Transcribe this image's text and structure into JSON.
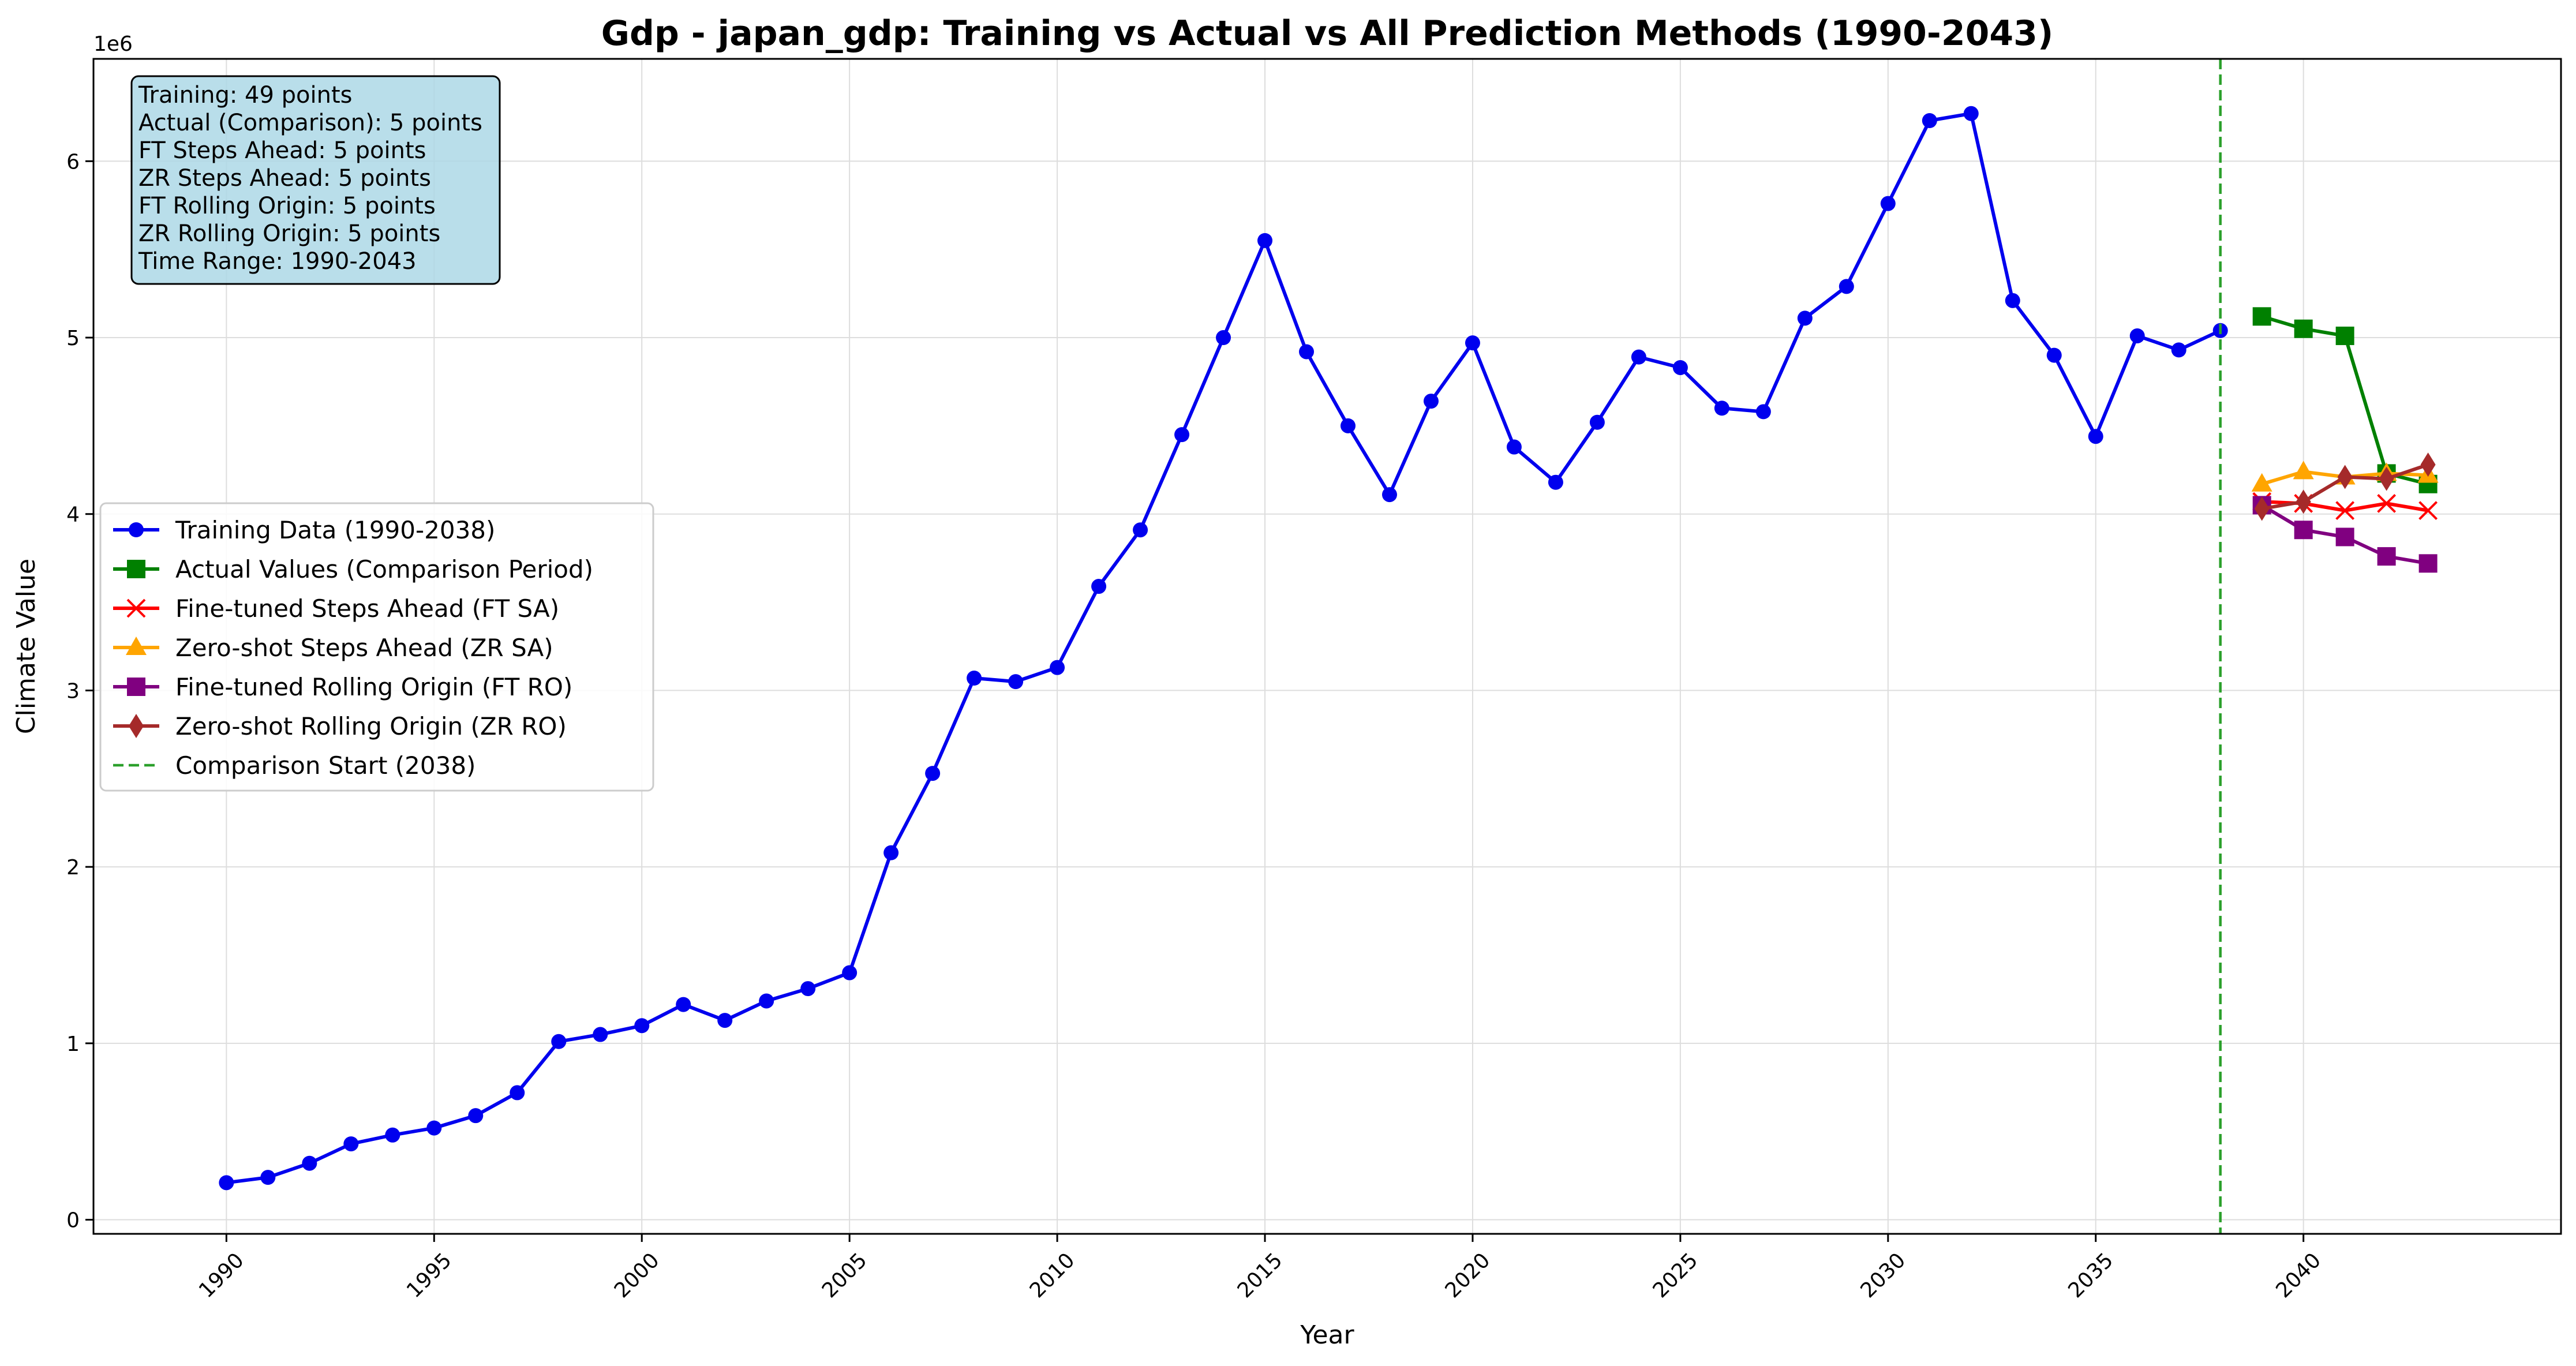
{
  "chart_data": {
    "type": "line",
    "title": "Gdp - japan_gdp: Training vs Actual vs All Prediction Methods (1990-2043)",
    "xlabel": "Year",
    "ylabel": "Climate Value",
    "y_scale_note": "1e6",
    "xlim": [
      1986.8,
      2046.2
    ],
    "ylim": [
      -80000,
      6580000
    ],
    "x_ticks": [
      1990,
      1995,
      2000,
      2005,
      2010,
      2015,
      2020,
      2025,
      2030,
      2035,
      2040
    ],
    "x_tick_labels": [
      "1990",
      "1995",
      "2000",
      "2005",
      "2010",
      "2015",
      "2020",
      "2025",
      "2030",
      "2035",
      "2040"
    ],
    "y_ticks": [
      0,
      1000000,
      2000000,
      3000000,
      4000000,
      5000000,
      6000000
    ],
    "y_tick_labels": [
      "0",
      "1",
      "2",
      "3",
      "4",
      "5",
      "6"
    ],
    "grid": true,
    "legend_position": "center-left",
    "comparison_start": {
      "x": 2038,
      "label": "Comparison Start (2038)",
      "color": "#2ca02c"
    },
    "info_box": {
      "position": "top-left",
      "lines": [
        "Training: 49 points",
        "Actual (Comparison): 5 points",
        "FT Steps Ahead: 5 points",
        "ZR Steps Ahead: 5 points",
        "FT Rolling Origin: 5 points",
        "ZR Rolling Origin: 5 points",
        "Time Range: 1990-2043"
      ]
    },
    "series": [
      {
        "name": "Training Data (1990-2038)",
        "color": "#0000ee",
        "marker": "circle",
        "x": [
          1990,
          1991,
          1992,
          1993,
          1994,
          1995,
          1996,
          1997,
          1998,
          1999,
          2000,
          2001,
          2002,
          2003,
          2004,
          2005,
          2006,
          2007,
          2008,
          2009,
          2010,
          2011,
          2012,
          2013,
          2014,
          2015,
          2016,
          2017,
          2018,
          2019,
          2020,
          2021,
          2022,
          2023,
          2024,
          2025,
          2026,
          2027,
          2028,
          2029,
          2030,
          2031,
          2032,
          2033,
          2034,
          2035,
          2036,
          2037,
          2038
        ],
        "y": [
          210000,
          240000,
          320000,
          430000,
          480000,
          520000,
          590000,
          720000,
          1010000,
          1050000,
          1100000,
          1220000,
          1130000,
          1240000,
          1310000,
          1400000,
          2080000,
          2530000,
          3070000,
          3050000,
          3130000,
          3590000,
          3910000,
          4450000,
          5000000,
          5550000,
          4920000,
          4500000,
          4110000,
          4640000,
          4970000,
          4380000,
          4180000,
          4520000,
          4890000,
          4830000,
          4600000,
          4580000,
          5110000,
          5290000,
          5760000,
          6230000,
          6270000,
          5210000,
          4900000,
          4440000,
          5010000,
          4930000,
          5040000
        ]
      },
      {
        "name": "Actual Values (Comparison Period)",
        "color": "#008000",
        "marker": "square",
        "x": [
          2039,
          2040,
          2041,
          2042,
          2043
        ],
        "y": [
          5120000,
          5050000,
          5010000,
          4230000,
          4170000
        ]
      },
      {
        "name": "Fine-tuned Steps Ahead (FT SA)",
        "color": "#ff0000",
        "marker": "x",
        "x": [
          2039,
          2040,
          2041,
          2042,
          2043
        ],
        "y": [
          4070000,
          4060000,
          4020000,
          4060000,
          4020000
        ]
      },
      {
        "name": "Zero-shot Steps Ahead (ZR SA)",
        "color": "#ffa500",
        "marker": "triangle",
        "x": [
          2039,
          2040,
          2041,
          2042,
          2043
        ],
        "y": [
          4170000,
          4240000,
          4210000,
          4230000,
          4220000
        ]
      },
      {
        "name": "Fine-tuned Rolling Origin (FT RO)",
        "color": "#800080",
        "marker": "square",
        "x": [
          2039,
          2040,
          2041,
          2042,
          2043
        ],
        "y": [
          4050000,
          3910000,
          3870000,
          3760000,
          3720000
        ]
      },
      {
        "name": "Zero-shot Rolling Origin (ZR RO)",
        "color": "#a52a2a",
        "marker": "diamond",
        "x": [
          2039,
          2040,
          2041,
          2042,
          2043
        ],
        "y": [
          4030000,
          4070000,
          4210000,
          4200000,
          4280000
        ]
      }
    ]
  }
}
